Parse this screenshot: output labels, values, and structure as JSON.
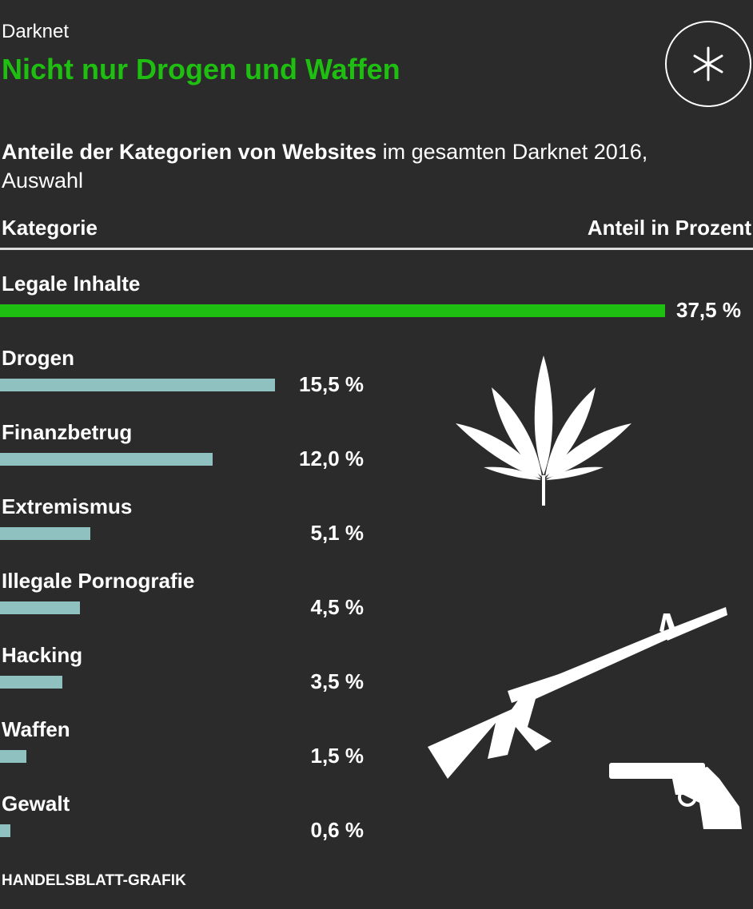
{
  "kicker": "Darknet",
  "title": "Nicht nur Drogen und Waffen",
  "subtitle_bold": "Anteile der Kategorien von Websites",
  "subtitle_rest": " im gesamten Darknet 2016, Auswahl",
  "source": "HANDELSBLATT-GRAFIK",
  "icons": [
    "asterisk-logo-icon",
    "cannabis-leaf-icon",
    "rifle-icon",
    "revolver-icon"
  ],
  "colors": {
    "background": "#2b2b2b",
    "title": "#1fbf12",
    "highlight_bar": "#1fbf12",
    "bar": "#8fc1c0"
  },
  "chart_data": {
    "type": "bar",
    "orientation": "horizontal",
    "column_headers": {
      "category": "Kategorie",
      "value": "Anteil in Prozent"
    },
    "categories": [
      "Legale Inhalte",
      "Drogen",
      "Finanzbetrug",
      "Extremismus",
      "Illegale Pornografie",
      "Hacking",
      "Waffen",
      "Gewalt"
    ],
    "values": [
      37.5,
      15.5,
      12.0,
      5.1,
      4.5,
      3.5,
      1.5,
      0.6
    ],
    "value_labels": [
      "37,5 %",
      "15,5 %",
      "12,0 %",
      "5,1 %",
      "4,5 %",
      "3,5 %",
      "1,5 %",
      "0,6 %"
    ],
    "highlighted": [
      "Legale Inhalte"
    ],
    "xlim": [
      0,
      37.5
    ],
    "grid": false
  }
}
